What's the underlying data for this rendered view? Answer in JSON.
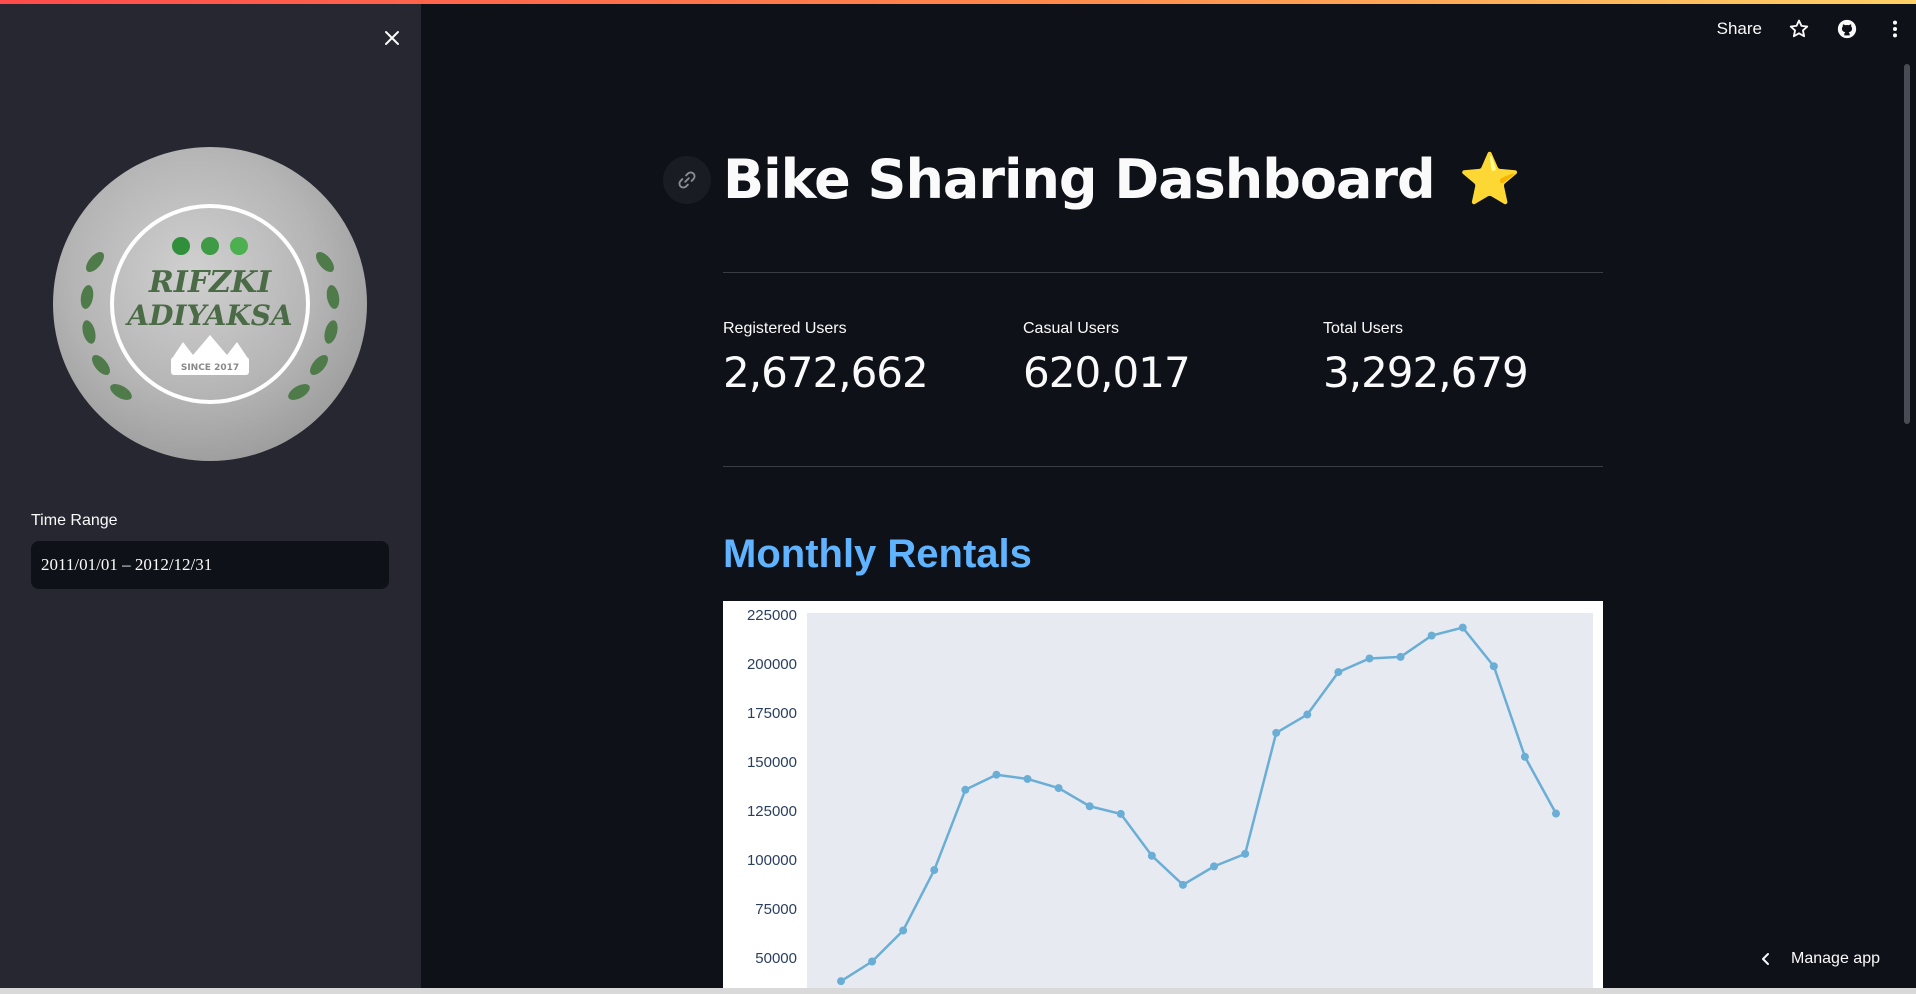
{
  "sidebar": {
    "close_icon": "close-icon",
    "logo": {
      "line1": "RIFZKI",
      "line2": "ADIYAKSA",
      "since": "SINCE 2017"
    },
    "time_range_label": "Time Range",
    "time_range_value": "2011/01/01 – 2012/12/31"
  },
  "header": {
    "share_label": "Share",
    "icons": [
      "star-outline-icon",
      "github-icon",
      "kebab-menu-icon"
    ]
  },
  "main": {
    "title": "Bike Sharing Dashboard",
    "title_emoji": "⭐",
    "metrics": [
      {
        "label": "Registered Users",
        "value": "2,672,662"
      },
      {
        "label": "Casual Users",
        "value": "620,017"
      },
      {
        "label": "Total Users",
        "value": "3,292,679"
      }
    ],
    "section_title": "Monthly Rentals"
  },
  "manage_app_label": "Manage app",
  "colors": {
    "accent_line": "#6aaed6",
    "plot_bg": "#e8eaf2",
    "section_title": "#60b4ff"
  },
  "chart_data": {
    "type": "line",
    "title": "",
    "xlabel": "",
    "ylabel": "",
    "yticks": [
      "225000",
      "200000",
      "175000",
      "150000",
      "125000",
      "100000",
      "75000",
      "50000"
    ],
    "ylim": [
      35000,
      228000
    ],
    "x": [
      1,
      2,
      3,
      4,
      5,
      6,
      7,
      8,
      9,
      10,
      11,
      12,
      13,
      14,
      15,
      16,
      17,
      18,
      19,
      20,
      21,
      22,
      23,
      24
    ],
    "values": [
      38189,
      48215,
      64045,
      94870,
      135821,
      143512,
      141341,
      136691,
      127418,
      123511,
      102167,
      87323,
      96744,
      103137,
      164875,
      174224,
      195865,
      202830,
      203607,
      214503,
      218573,
      198841,
      152664,
      123713
    ],
    "grid": false
  }
}
